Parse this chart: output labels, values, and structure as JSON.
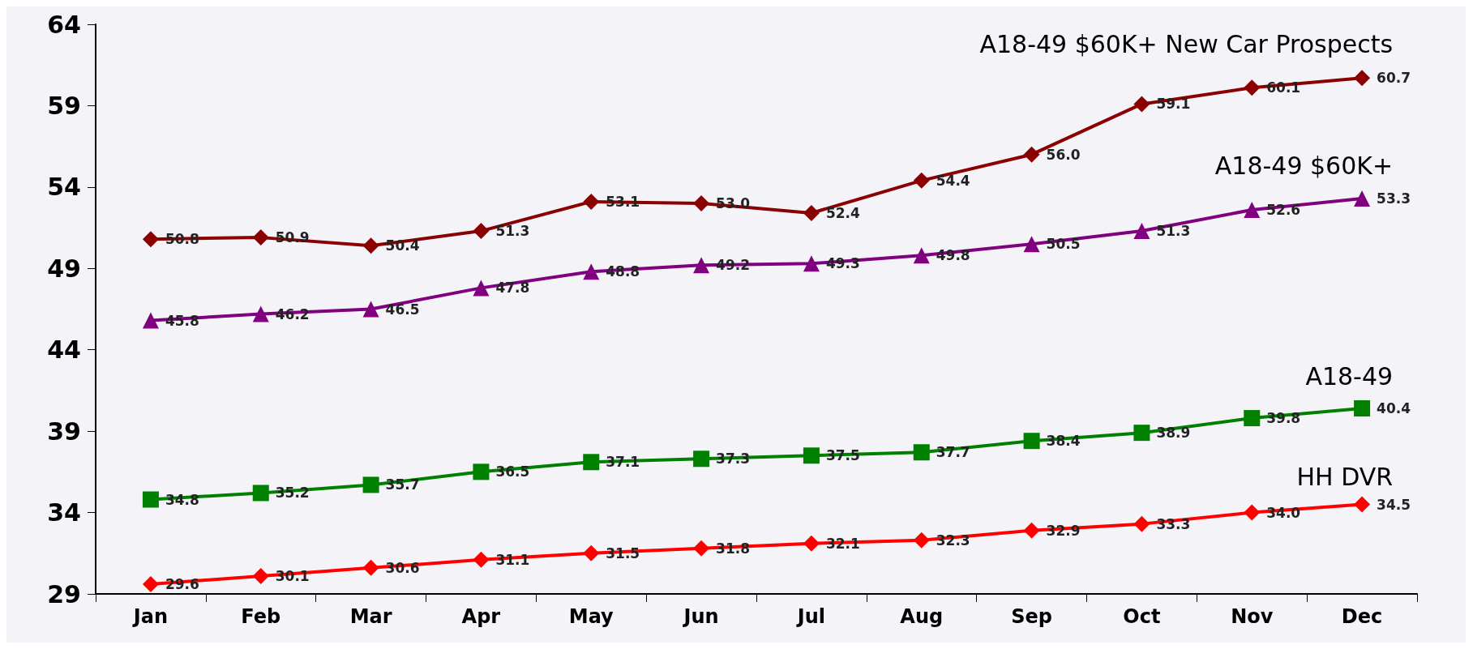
{
  "chart_data": {
    "type": "line",
    "categories": [
      "Jan",
      "Feb",
      "Mar",
      "Apr",
      "May",
      "Jun",
      "Jul",
      "Aug",
      "Sep",
      "Oct",
      "Nov",
      "Dec"
    ],
    "ylim": [
      29,
      64
    ],
    "yticks": [
      29,
      34,
      39,
      44,
      49,
      54,
      59,
      64
    ],
    "grid": false,
    "legend": false,
    "series": [
      {
        "name": "A18-49 $60K+ New Car Prospects",
        "color": "#8b0000",
        "marker": "diamond",
        "values": [
          50.8,
          50.9,
          50.4,
          51.3,
          53.1,
          53.0,
          52.4,
          54.4,
          56.0,
          59.1,
          60.1,
          60.7
        ],
        "value_labels": [
          "50.8",
          "50.9",
          "50.4",
          "51.3",
          "53.1",
          "53.0",
          "52.4",
          "54.4",
          "56.0",
          "59.1",
          "60.1",
          "60.7"
        ]
      },
      {
        "name": "A18-49 $60K+",
        "color": "#800080",
        "marker": "triangle",
        "values": [
          45.8,
          46.2,
          46.5,
          47.8,
          48.8,
          49.2,
          49.3,
          49.8,
          50.5,
          51.3,
          52.6,
          53.3
        ],
        "value_labels": [
          "45.8",
          "46.2",
          "46.5",
          "47.8",
          "48.8",
          "49.2",
          "49.3",
          "49.8",
          "50.5",
          "51.3",
          "52.6",
          "53.3"
        ]
      },
      {
        "name": "A18-49",
        "color": "#008000",
        "marker": "square",
        "values": [
          34.8,
          35.2,
          35.7,
          36.5,
          37.1,
          37.3,
          37.5,
          37.7,
          38.4,
          38.9,
          39.8,
          40.4
        ],
        "value_labels": [
          "34.8",
          "35.2",
          "35.7",
          "36.5",
          "37.1",
          "37.3",
          "37.5",
          "37.7",
          "38.4",
          "38.9",
          "39.8",
          "40.4"
        ]
      },
      {
        "name": "HH DVR",
        "color": "#ff0000",
        "marker": "diamond",
        "values": [
          29.6,
          30.1,
          30.6,
          31.1,
          31.5,
          31.8,
          32.1,
          32.3,
          32.9,
          33.3,
          34.0,
          34.5
        ],
        "value_labels": [
          "29.6",
          "30.1",
          "30.6",
          "31.1",
          "31.5",
          "31.8",
          "32.1",
          "32.3",
          "32.9",
          "33.3",
          "34.0",
          "34.5"
        ]
      }
    ]
  }
}
